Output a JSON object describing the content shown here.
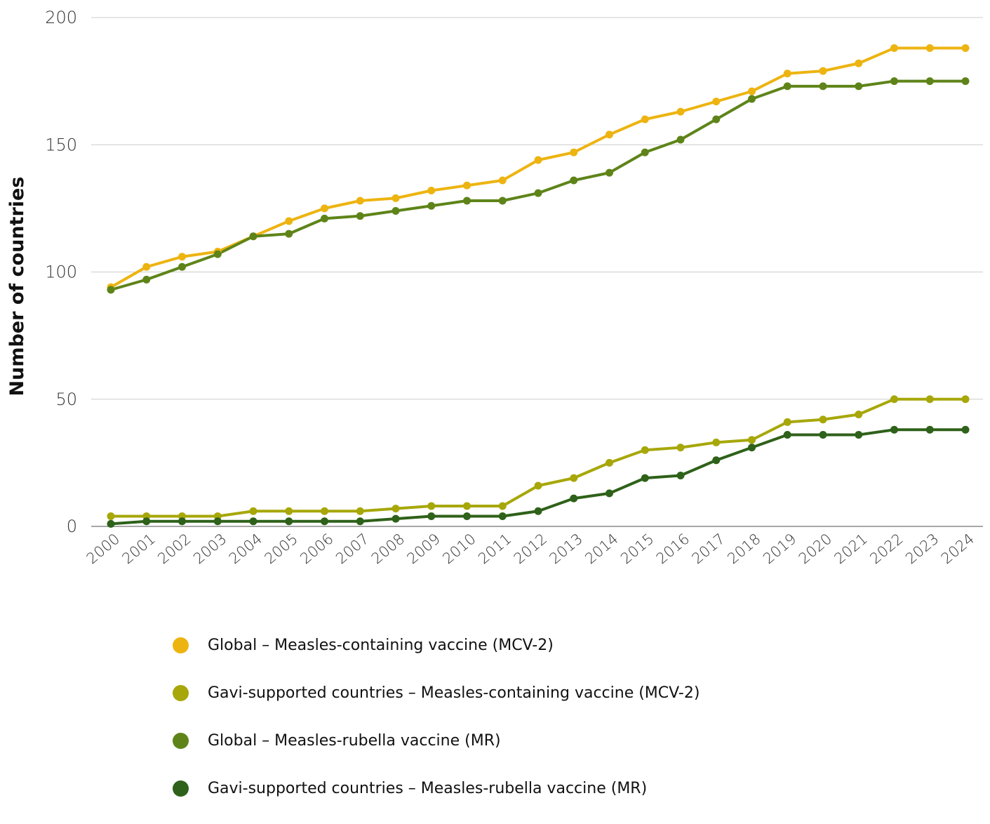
{
  "chart_data": {
    "type": "line",
    "title": "",
    "xlabel": "",
    "ylabel": "Number of countries",
    "ylim": [
      0,
      200
    ],
    "yticks": [
      "0",
      "50",
      "100",
      "150",
      "200"
    ],
    "grid": true,
    "legend_position": "bottom",
    "categories": [
      "2000",
      "2001",
      "2002",
      "2003",
      "2004",
      "2005",
      "2006",
      "2007",
      "2008",
      "2009",
      "2010",
      "2011",
      "2012",
      "2013",
      "2014",
      "2015",
      "2016",
      "2017",
      "2018",
      "2019",
      "2020",
      "2021",
      "2022",
      "2023",
      "2024"
    ],
    "series": [
      {
        "name": "Global – Measles-containing vaccine (MCV-2)",
        "color": "#EDB411",
        "values": [
          94,
          102,
          106,
          108,
          114,
          120,
          125,
          128,
          129,
          132,
          134,
          136,
          144,
          147,
          154,
          160,
          163,
          167,
          171,
          178,
          179,
          182,
          188,
          188,
          188
        ]
      },
      {
        "name": "Gavi-supported countries – Measles-containing vaccine (MCV-2)",
        "color": "#A7A70A",
        "values": [
          4,
          4,
          4,
          4,
          6,
          6,
          6,
          6,
          7,
          8,
          8,
          8,
          16,
          19,
          25,
          30,
          31,
          33,
          34,
          41,
          42,
          44,
          50,
          50,
          50
        ]
      },
      {
        "name": "Global – Measles-rubella vaccine (MR)",
        "color": "#5E8419",
        "values": [
          93,
          97,
          102,
          107,
          114,
          115,
          121,
          122,
          124,
          126,
          128,
          128,
          131,
          136,
          139,
          147,
          152,
          160,
          168,
          173,
          173,
          173,
          175,
          175,
          175
        ]
      },
      {
        "name": "Gavi-supported countries – Measles-rubella vaccine (MR)",
        "color": "#2E6119",
        "values": [
          1,
          2,
          2,
          2,
          2,
          2,
          2,
          2,
          3,
          4,
          4,
          4,
          6,
          11,
          13,
          19,
          20,
          26,
          31,
          36,
          36,
          36,
          38,
          38,
          38
        ]
      }
    ]
  }
}
